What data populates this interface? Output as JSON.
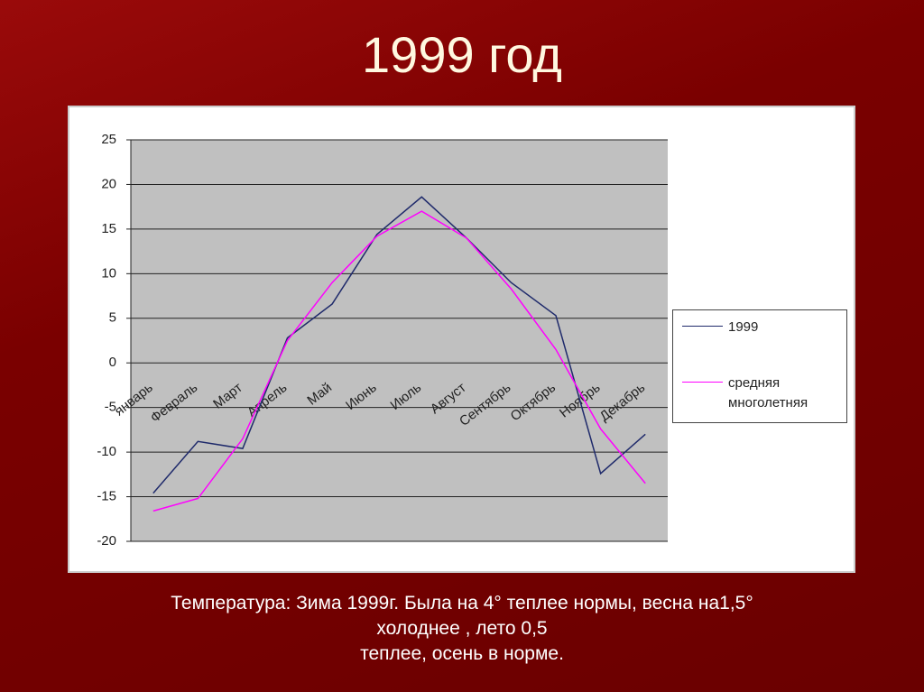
{
  "chart_data": {
    "type": "line",
    "title": "1999 год",
    "categories": [
      "январь",
      "Февраль",
      "Март",
      "Апрель",
      "Май",
      "Июнь",
      "Июль",
      "Август",
      "Сентябрь",
      "Октябрь",
      "Ноябрь",
      "Декабрь"
    ],
    "series": [
      {
        "name": "1999",
        "color": "#1f2a6b",
        "values": [
          -14.6,
          -8.8,
          -9.6,
          2.8,
          6.6,
          14.4,
          18.6,
          14,
          9,
          5.3,
          -12.4,
          -8
        ]
      },
      {
        "name": "средняя многолетняя",
        "color": "#ff00ff",
        "values": [
          -16.6,
          -15.2,
          -8.5,
          2.5,
          9,
          14.2,
          17,
          14,
          8.3,
          1.5,
          -7.4,
          -13.5
        ]
      }
    ],
    "ylim": [
      -20,
      25
    ],
    "yticks": [
      -20,
      -15,
      -10,
      -5,
      0,
      5,
      10,
      15,
      20,
      25
    ],
    "grid": true,
    "legend": "right",
    "caption": [
      "Температура: Зима 1999г. Была на 4° теплее нормы, весна на1,5°",
      "холоднее , лето 0,5",
      "теплее, осень в норме."
    ]
  }
}
